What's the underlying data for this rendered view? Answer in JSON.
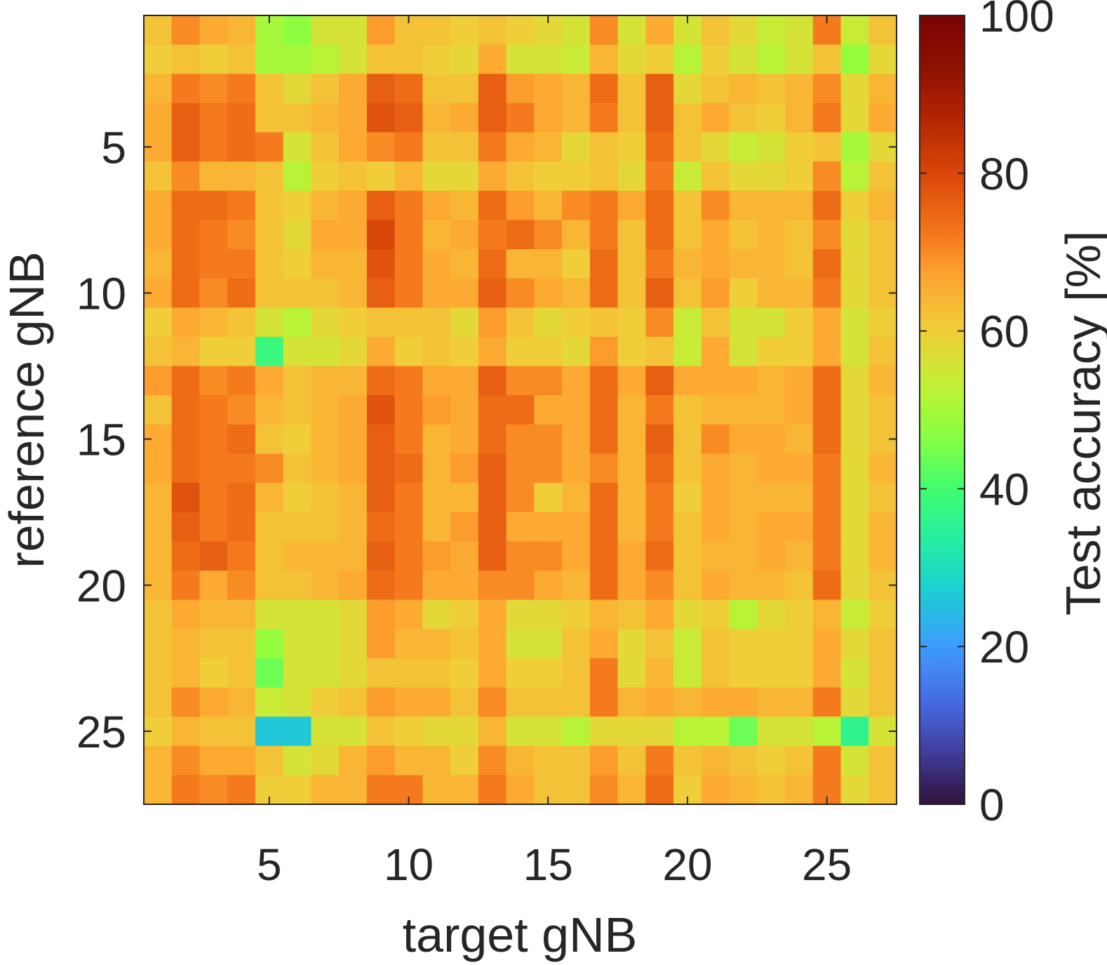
{
  "chart_data": {
    "type": "heatmap",
    "xlabel": "target gNB",
    "ylabel": "reference gNB",
    "colorbar_label": "Test accuracy [%]",
    "colormap": "turbo",
    "clim": [
      0,
      100
    ],
    "x_range": [
      1,
      27
    ],
    "y_range": [
      1,
      27
    ],
    "x_ticks": [
      5,
      10,
      15,
      20,
      25
    ],
    "y_ticks": [
      5,
      10,
      15,
      20,
      25
    ],
    "colorbar_ticks": [
      0,
      20,
      40,
      60,
      80,
      100
    ],
    "values": [
      [
        62,
        70,
        66,
        64,
        50,
        47,
        56,
        56,
        68,
        62,
        62,
        60,
        62,
        60,
        58,
        56,
        70,
        56,
        66,
        56,
        62,
        58,
        54,
        56,
        72,
        54,
        62
      ],
      [
        60,
        62,
        60,
        62,
        50,
        50,
        52,
        56,
        62,
        62,
        60,
        58,
        66,
        56,
        56,
        54,
        64,
        58,
        60,
        52,
        60,
        56,
        52,
        56,
        62,
        48,
        58
      ],
      [
        64,
        72,
        70,
        72,
        62,
        58,
        62,
        66,
        76,
        74,
        62,
        62,
        76,
        68,
        66,
        64,
        74,
        62,
        76,
        58,
        62,
        64,
        62,
        64,
        70,
        58,
        64
      ],
      [
        66,
        76,
        72,
        74,
        62,
        62,
        64,
        66,
        78,
        76,
        64,
        66,
        76,
        72,
        66,
        64,
        72,
        62,
        76,
        62,
        66,
        62,
        60,
        64,
        72,
        58,
        66
      ],
      [
        66,
        76,
        72,
        74,
        72,
        56,
        62,
        66,
        70,
        72,
        62,
        62,
        72,
        66,
        64,
        58,
        62,
        60,
        74,
        62,
        58,
        54,
        56,
        60,
        62,
        50,
        58
      ],
      [
        62,
        70,
        64,
        64,
        62,
        52,
        60,
        62,
        60,
        64,
        58,
        58,
        66,
        62,
        60,
        60,
        62,
        58,
        72,
        54,
        62,
        58,
        58,
        60,
        70,
        52,
        62
      ],
      [
        66,
        74,
        74,
        72,
        62,
        60,
        64,
        66,
        76,
        72,
        66,
        64,
        74,
        68,
        64,
        70,
        72,
        66,
        74,
        62,
        70,
        64,
        64,
        64,
        74,
        60,
        64
      ],
      [
        66,
        74,
        72,
        70,
        62,
        58,
        66,
        66,
        80,
        72,
        64,
        66,
        72,
        74,
        70,
        64,
        72,
        62,
        74,
        62,
        66,
        62,
        64,
        62,
        70,
        58,
        62
      ],
      [
        64,
        74,
        72,
        72,
        62,
        60,
        64,
        64,
        78,
        72,
        66,
        64,
        74,
        64,
        64,
        60,
        74,
        62,
        72,
        64,
        66,
        64,
        64,
        62,
        74,
        58,
        62
      ],
      [
        66,
        74,
        70,
        74,
        62,
        62,
        62,
        64,
        76,
        72,
        66,
        66,
        76,
        70,
        66,
        64,
        74,
        62,
        76,
        62,
        68,
        60,
        64,
        64,
        72,
        58,
        62
      ],
      [
        60,
        66,
        64,
        62,
        56,
        52,
        58,
        60,
        62,
        62,
        62,
        58,
        68,
        62,
        58,
        60,
        62,
        60,
        70,
        54,
        62,
        56,
        56,
        60,
        66,
        56,
        60
      ],
      [
        62,
        64,
        60,
        60,
        38,
        56,
        56,
        58,
        66,
        60,
        62,
        60,
        66,
        60,
        60,
        58,
        68,
        60,
        62,
        54,
        66,
        56,
        60,
        60,
        66,
        56,
        62
      ],
      [
        68,
        74,
        70,
        72,
        66,
        62,
        64,
        64,
        74,
        72,
        66,
        66,
        76,
        70,
        70,
        66,
        74,
        66,
        76,
        66,
        66,
        66,
        64,
        66,
        74,
        58,
        64
      ],
      [
        62,
        74,
        72,
        70,
        64,
        62,
        64,
        66,
        78,
        72,
        68,
        66,
        74,
        74,
        66,
        66,
        74,
        64,
        72,
        62,
        64,
        64,
        64,
        66,
        74,
        58,
        62
      ],
      [
        66,
        74,
        72,
        74,
        62,
        60,
        64,
        66,
        76,
        72,
        64,
        66,
        74,
        70,
        70,
        66,
        74,
        64,
        76,
        62,
        70,
        66,
        66,
        64,
        74,
        58,
        62
      ],
      [
        66,
        74,
        72,
        72,
        70,
        62,
        64,
        66,
        76,
        74,
        64,
        68,
        76,
        70,
        70,
        66,
        70,
        64,
        74,
        62,
        66,
        64,
        66,
        66,
        72,
        58,
        64
      ],
      [
        64,
        78,
        72,
        74,
        64,
        60,
        62,
        64,
        76,
        72,
        64,
        64,
        76,
        70,
        60,
        64,
        74,
        64,
        72,
        60,
        66,
        64,
        64,
        64,
        72,
        58,
        62
      ],
      [
        64,
        76,
        72,
        74,
        62,
        62,
        62,
        64,
        74,
        72,
        64,
        68,
        76,
        66,
        66,
        66,
        74,
        64,
        72,
        62,
        66,
        64,
        66,
        66,
        72,
        58,
        64
      ],
      [
        64,
        74,
        76,
        72,
        62,
        64,
        64,
        64,
        76,
        72,
        68,
        66,
        76,
        70,
        70,
        66,
        74,
        66,
        74,
        62,
        64,
        64,
        66,
        64,
        72,
        58,
        64
      ],
      [
        64,
        72,
        66,
        70,
        62,
        62,
        64,
        66,
        74,
        72,
        66,
        66,
        70,
        70,
        66,
        64,
        74,
        66,
        70,
        62,
        66,
        64,
        64,
        62,
        74,
        58,
        62
      ],
      [
        62,
        66,
        64,
        64,
        56,
        56,
        56,
        58,
        68,
        66,
        58,
        60,
        66,
        58,
        58,
        60,
        64,
        62,
        66,
        58,
        60,
        52,
        58,
        60,
        64,
        54,
        60
      ],
      [
        62,
        64,
        62,
        62,
        48,
        56,
        56,
        58,
        68,
        64,
        64,
        62,
        66,
        56,
        56,
        62,
        66,
        58,
        62,
        54,
        62,
        60,
        60,
        60,
        66,
        58,
        62
      ],
      [
        62,
        64,
        60,
        62,
        44,
        56,
        56,
        58,
        62,
        62,
        62,
        60,
        66,
        60,
        60,
        62,
        72,
        58,
        64,
        54,
        62,
        60,
        60,
        60,
        66,
        56,
        62
      ],
      [
        62,
        70,
        66,
        64,
        54,
        56,
        60,
        62,
        68,
        66,
        66,
        62,
        70,
        62,
        62,
        62,
        72,
        64,
        66,
        64,
        66,
        66,
        64,
        64,
        72,
        58,
        62
      ],
      [
        60,
        64,
        62,
        62,
        26,
        26,
        56,
        56,
        62,
        60,
        58,
        58,
        64,
        56,
        56,
        52,
        58,
        58,
        58,
        52,
        52,
        44,
        56,
        56,
        52,
        36,
        56
      ],
      [
        64,
        70,
        66,
        66,
        62,
        56,
        58,
        64,
        68,
        64,
        64,
        60,
        70,
        64,
        62,
        62,
        68,
        62,
        72,
        62,
        64,
        62,
        60,
        62,
        72,
        56,
        62
      ],
      [
        64,
        72,
        70,
        72,
        60,
        60,
        64,
        64,
        72,
        72,
        64,
        64,
        72,
        66,
        62,
        62,
        70,
        64,
        74,
        60,
        66,
        64,
        62,
        64,
        72,
        58,
        62
      ]
    ]
  }
}
